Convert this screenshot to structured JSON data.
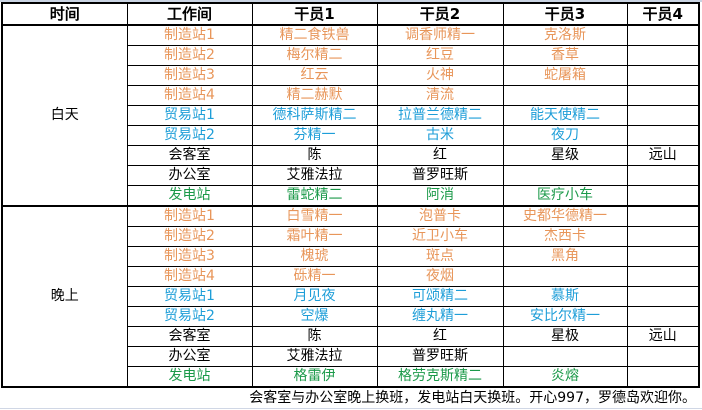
{
  "headers": [
    "时间",
    "工作间",
    "干员1",
    "干员2",
    "干员3",
    "干员4"
  ],
  "colors": {
    "orange": "#e8965a",
    "blue": "#1e9ed8",
    "green": "#1c9a4a",
    "black": "#000000"
  },
  "groups": [
    {
      "time": "白天",
      "rows": [
        {
          "room": "制造站1",
          "color": "orange",
          "ops": [
            "精二食铁兽",
            "调香师精一",
            "克洛斯",
            ""
          ]
        },
        {
          "room": "制造站2",
          "color": "orange",
          "ops": [
            "梅尔精二",
            "红豆",
            "香草",
            ""
          ]
        },
        {
          "room": "制造站3",
          "color": "orange",
          "ops": [
            "红云",
            "火神",
            "蛇屠箱",
            ""
          ]
        },
        {
          "room": "制造站4",
          "color": "orange",
          "ops": [
            "精二赫默",
            "清流",
            "",
            ""
          ]
        },
        {
          "room": "贸易站1",
          "color": "blue",
          "ops": [
            "德科萨斯精二",
            "拉普兰德精二",
            "能天使精二",
            ""
          ]
        },
        {
          "room": "贸易站2",
          "color": "blue",
          "ops": [
            "芬精一",
            "古米",
            "夜刀",
            ""
          ]
        },
        {
          "room": "会客室",
          "color": "black",
          "ops": [
            "陈",
            "红",
            "星级",
            "远山"
          ]
        },
        {
          "room": "办公室",
          "color": "black",
          "ops": [
            "艾雅法拉",
            "普罗旺斯",
            "",
            ""
          ]
        },
        {
          "room": "发电站",
          "color": "green",
          "ops": [
            "雷蛇精二",
            "阿消",
            "医疗小车",
            ""
          ]
        }
      ]
    },
    {
      "time": "晚上",
      "rows": [
        {
          "room": "制造站1",
          "color": "orange",
          "ops": [
            "白雪精一",
            "泡普卡",
            "史都华德精一",
            ""
          ]
        },
        {
          "room": "制造站2",
          "color": "orange",
          "ops": [
            "霜叶精一",
            "近卫小车",
            "杰西卡",
            ""
          ]
        },
        {
          "room": "制造站3",
          "color": "orange",
          "ops": [
            "槐琥",
            "斑点",
            "黑角",
            ""
          ]
        },
        {
          "room": "制造站4",
          "color": "orange",
          "ops": [
            "砾精一",
            "夜烟",
            "",
            ""
          ]
        },
        {
          "room": "贸易站1",
          "color": "blue",
          "ops": [
            "月见夜",
            "可颂精二",
            "慕斯",
            ""
          ]
        },
        {
          "room": "贸易站2",
          "color": "blue",
          "ops": [
            "空爆",
            "缠丸精一",
            "安比尔精一",
            ""
          ]
        },
        {
          "room": "会客室",
          "color": "black",
          "ops": [
            "陈",
            "红",
            "星极",
            "远山"
          ]
        },
        {
          "room": "办公室",
          "color": "black",
          "ops": [
            "艾雅法拉",
            "普罗旺斯",
            "",
            ""
          ]
        },
        {
          "room": "发电站",
          "color": "green",
          "ops": [
            "格雷伊",
            "格劳克斯精二",
            "炎熔",
            ""
          ]
        }
      ]
    }
  ],
  "footer": "会客室与办公室晚上换班，发电站白天换班。开心997，罗德岛欢迎你。"
}
